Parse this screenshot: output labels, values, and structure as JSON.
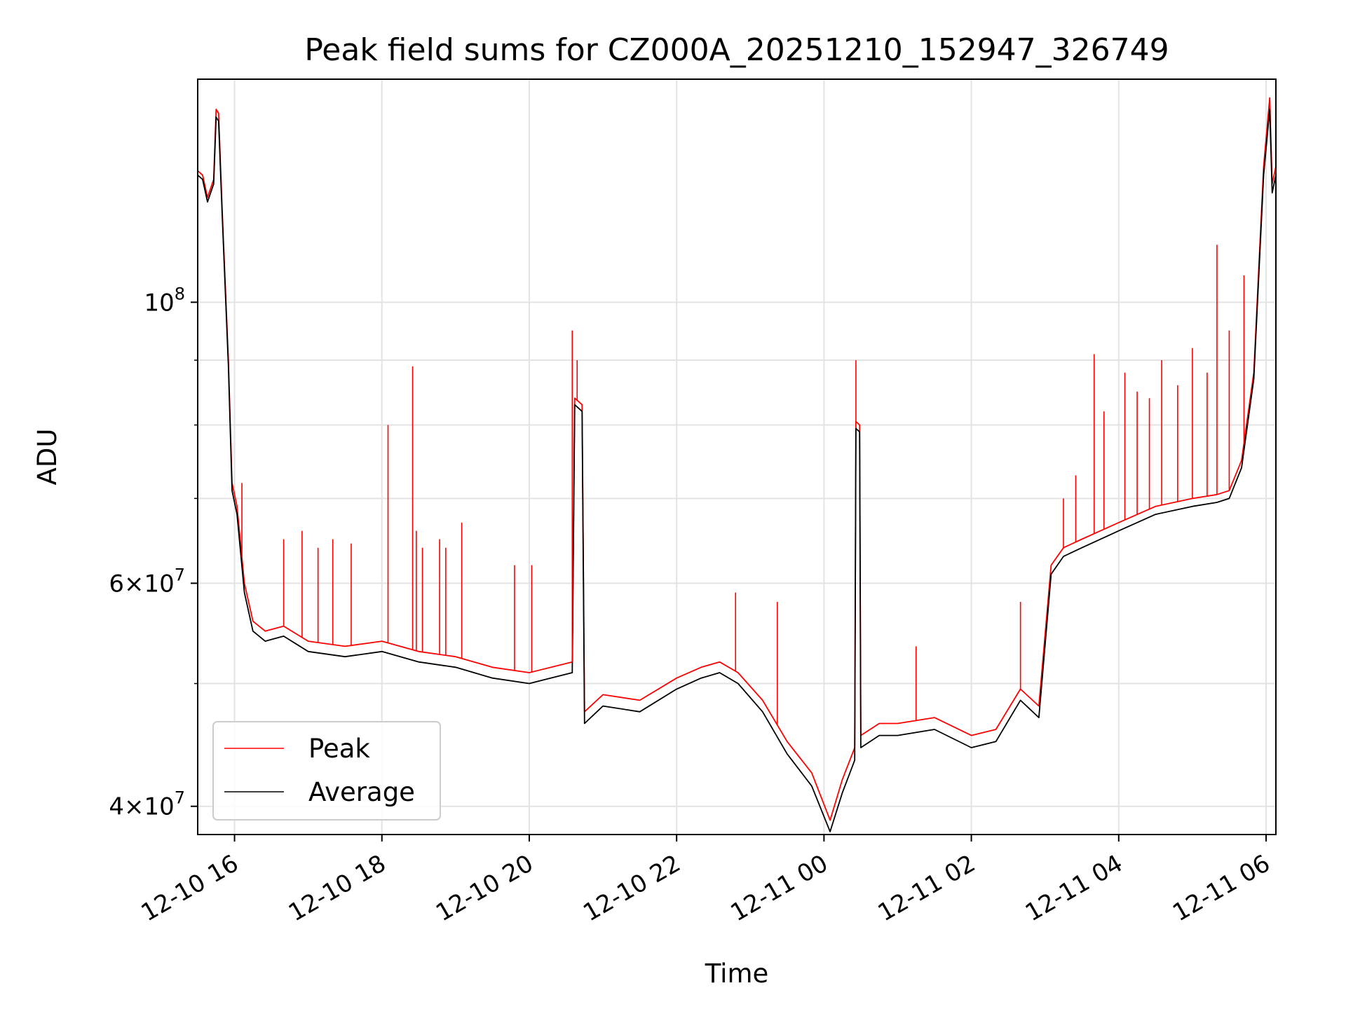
{
  "chart_data": {
    "type": "line",
    "title": "Peak field sums for CZ000A_20251210_152947_326749",
    "xlabel": "Time",
    "ylabel": "ADU",
    "yscale": "log",
    "xlim": [
      "2025-12-10 15:30",
      "2025-12-11 06:08"
    ],
    "ylim": [
      38000000,
      150000000
    ],
    "x_ticks": [
      {
        "value": "2025-12-10 16:00",
        "label": "12-10 16"
      },
      {
        "value": "2025-12-10 18:00",
        "label": "12-10 18"
      },
      {
        "value": "2025-12-10 20:00",
        "label": "12-10 20"
      },
      {
        "value": "2025-12-10 22:00",
        "label": "12-10 22"
      },
      {
        "value": "2025-12-11 00:00",
        "label": "12-11 00"
      },
      {
        "value": "2025-12-11 02:00",
        "label": "12-11 02"
      },
      {
        "value": "2025-12-11 04:00",
        "label": "12-11 04"
      },
      {
        "value": "2025-12-11 06:00",
        "label": "12-11 06"
      }
    ],
    "y_ticks": [
      {
        "value": 40000000,
        "base": "4×10",
        "exp": "7"
      },
      {
        "value": 60000000,
        "base": "6×10",
        "exp": "7"
      },
      {
        "value": 100000000,
        "base": "10",
        "exp": "8"
      }
    ],
    "y_minor_gridlines": [
      50000000,
      70000000,
      80000000,
      90000000
    ],
    "grid": true,
    "legend_position": "lower-left",
    "series": [
      {
        "name": "Peak",
        "color": "#ff0000",
        "x": [
          "2025-12-10 15:30",
          "2025-12-10 15:34",
          "2025-12-10 15:38",
          "2025-12-10 15:43",
          "2025-12-10 15:45",
          "2025-12-10 15:47",
          "2025-12-10 15:50",
          "2025-12-10 15:55",
          "2025-12-10 15:58",
          "2025-12-10 16:02",
          "2025-12-10 16:08",
          "2025-12-10 16:15",
          "2025-12-10 16:25",
          "2025-12-10 16:40",
          "2025-12-10 17:00",
          "2025-12-10 17:30",
          "2025-12-10 18:00",
          "2025-12-10 18:30",
          "2025-12-10 19:00",
          "2025-12-10 19:30",
          "2025-12-10 20:00",
          "2025-12-10 20:35",
          "2025-12-10 20:37",
          "2025-12-10 20:43",
          "2025-12-10 20:45",
          "2025-12-10 21:00",
          "2025-12-10 21:30",
          "2025-12-10 22:00",
          "2025-12-10 22:20",
          "2025-12-10 22:35",
          "2025-12-10 22:50",
          "2025-12-10 23:10",
          "2025-12-10 23:30",
          "2025-12-10 23:50",
          "2025-12-11 00:05",
          "2025-12-11 00:15",
          "2025-12-11 00:25",
          "2025-12-11 00:26",
          "2025-12-11 00:29",
          "2025-12-11 00:30",
          "2025-12-11 00:45",
          "2025-12-11 01:00",
          "2025-12-11 01:30",
          "2025-12-11 02:00",
          "2025-12-11 02:20",
          "2025-12-11 02:40",
          "2025-12-11 02:55",
          "2025-12-11 03:05",
          "2025-12-11 03:15",
          "2025-12-11 03:30",
          "2025-12-11 04:00",
          "2025-12-11 04:30",
          "2025-12-11 05:00",
          "2025-12-11 05:20",
          "2025-12-11 05:30",
          "2025-12-11 05:40",
          "2025-12-11 05:50",
          "2025-12-11 05:58",
          "2025-12-11 06:03",
          "2025-12-11 06:05",
          "2025-12-11 06:08"
        ],
        "y": [
          127000000,
          126000000,
          121000000,
          125000000,
          142000000,
          141000000,
          118000000,
          90000000,
          72000000,
          69000000,
          60000000,
          56000000,
          55000000,
          55500000,
          54000000,
          53500000,
          54000000,
          53000000,
          52500000,
          51500000,
          51000000,
          52000000,
          84000000,
          83000000,
          47500000,
          49000000,
          48500000,
          50500000,
          51500000,
          52000000,
          51000000,
          48500000,
          45000000,
          42500000,
          39000000,
          42000000,
          44500000,
          80500000,
          80000000,
          45500000,
          46500000,
          46500000,
          47000000,
          45500000,
          46000000,
          49500000,
          48000000,
          62000000,
          64000000,
          65000000,
          67000000,
          69000000,
          70000000,
          70500000,
          71000000,
          75000000,
          88000000,
          128000000,
          145000000,
          124000000,
          128000000
        ]
      },
      {
        "name": "Average",
        "color": "#000000",
        "x": [
          "2025-12-10 15:30",
          "2025-12-10 15:34",
          "2025-12-10 15:38",
          "2025-12-10 15:43",
          "2025-12-10 15:45",
          "2025-12-10 15:47",
          "2025-12-10 15:50",
          "2025-12-10 15:55",
          "2025-12-10 15:58",
          "2025-12-10 16:02",
          "2025-12-10 16:08",
          "2025-12-10 16:15",
          "2025-12-10 16:25",
          "2025-12-10 16:40",
          "2025-12-10 17:00",
          "2025-12-10 17:30",
          "2025-12-10 18:00",
          "2025-12-10 18:30",
          "2025-12-10 19:00",
          "2025-12-10 19:30",
          "2025-12-10 20:00",
          "2025-12-10 20:35",
          "2025-12-10 20:37",
          "2025-12-10 20:43",
          "2025-12-10 20:45",
          "2025-12-10 21:00",
          "2025-12-10 21:30",
          "2025-12-10 22:00",
          "2025-12-10 22:20",
          "2025-12-10 22:35",
          "2025-12-10 22:50",
          "2025-12-10 23:10",
          "2025-12-10 23:30",
          "2025-12-10 23:50",
          "2025-12-11 00:05",
          "2025-12-11 00:15",
          "2025-12-11 00:25",
          "2025-12-11 00:26",
          "2025-12-11 00:29",
          "2025-12-11 00:30",
          "2025-12-11 00:45",
          "2025-12-11 01:00",
          "2025-12-11 01:30",
          "2025-12-11 02:00",
          "2025-12-11 02:20",
          "2025-12-11 02:40",
          "2025-12-11 02:55",
          "2025-12-11 03:05",
          "2025-12-11 03:15",
          "2025-12-11 03:30",
          "2025-12-11 04:00",
          "2025-12-11 04:30",
          "2025-12-11 05:00",
          "2025-12-11 05:20",
          "2025-12-11 05:30",
          "2025-12-11 05:40",
          "2025-12-11 05:50",
          "2025-12-11 05:58",
          "2025-12-11 06:03",
          "2025-12-11 06:05",
          "2025-12-11 06:08"
        ],
        "y": [
          126000000,
          125000000,
          120000000,
          124000000,
          140000000,
          139000000,
          117000000,
          89000000,
          71000000,
          68000000,
          59000000,
          55000000,
          54000000,
          54500000,
          53000000,
          52500000,
          53000000,
          52000000,
          51500000,
          50500000,
          50000000,
          51000000,
          83000000,
          82000000,
          46500000,
          48000000,
          47500000,
          49500000,
          50500000,
          51000000,
          50000000,
          47500000,
          44000000,
          41500000,
          38200000,
          41000000,
          43500000,
          79500000,
          79000000,
          44500000,
          45500000,
          45500000,
          46000000,
          44500000,
          45000000,
          48500000,
          47000000,
          61000000,
          63000000,
          64000000,
          66000000,
          68000000,
          69000000,
          69500000,
          70000000,
          74000000,
          87000000,
          126000000,
          142000000,
          122000000,
          126000000
        ]
      }
    ],
    "spikes": {
      "color": "#ff0000",
      "x": [
        "2025-12-10 16:06",
        "2025-12-10 16:40",
        "2025-12-10 16:55",
        "2025-12-10 17:08",
        "2025-12-10 17:20",
        "2025-12-10 17:35",
        "2025-12-10 18:05",
        "2025-12-10 18:25",
        "2025-12-10 18:28",
        "2025-12-10 18:33",
        "2025-12-10 18:47",
        "2025-12-10 18:52",
        "2025-12-10 19:05",
        "2025-12-10 19:48",
        "2025-12-10 20:02",
        "2025-12-10 20:35",
        "2025-12-10 20:39",
        "2025-12-10 22:48",
        "2025-12-10 23:22",
        "2025-12-11 00:26",
        "2025-12-11 01:15",
        "2025-12-11 02:40",
        "2025-12-11 03:15",
        "2025-12-11 03:25",
        "2025-12-11 03:40",
        "2025-12-11 03:48",
        "2025-12-11 04:05",
        "2025-12-11 04:15",
        "2025-12-11 04:25",
        "2025-12-11 04:35",
        "2025-12-11 04:48",
        "2025-12-11 05:00",
        "2025-12-11 05:12",
        "2025-12-11 05:20",
        "2025-12-11 05:30",
        "2025-12-11 05:42"
      ],
      "y": [
        72000000,
        65000000,
        66000000,
        64000000,
        65000000,
        64500000,
        80000000,
        89000000,
        66000000,
        64000000,
        65000000,
        64000000,
        67000000,
        62000000,
        62000000,
        95000000,
        90000000,
        59000000,
        58000000,
        90000000,
        53500000,
        58000000,
        70000000,
        73000000,
        91000000,
        82000000,
        88000000,
        85000000,
        84000000,
        90000000,
        86000000,
        92000000,
        88000000,
        111000000,
        95000000,
        105000000
      ]
    }
  }
}
